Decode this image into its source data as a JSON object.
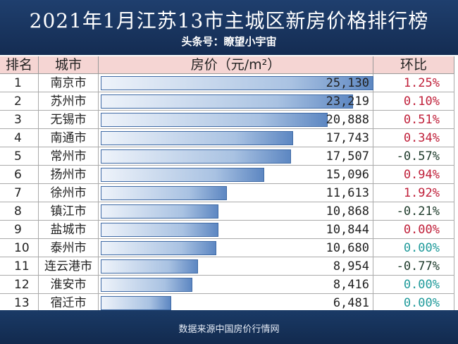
{
  "header": {
    "title": "2021年1月江苏13市主城区新房价格排行榜",
    "subtitle": "头条号：瞭望小宇宙"
  },
  "table": {
    "columns": [
      "排名",
      "城市",
      "房价（元/m²）",
      "环比"
    ],
    "rows": [
      {
        "rank": 1,
        "city": "南京市",
        "price": 25130,
        "price_label": "25,130",
        "change": "1.25%",
        "color": "#c0203a"
      },
      {
        "rank": 2,
        "city": "苏州市",
        "price": 23219,
        "price_label": "23,219",
        "change": "0.10%",
        "color": "#c0203a"
      },
      {
        "rank": 3,
        "city": "无锡市",
        "price": 20888,
        "price_label": "20,888",
        "change": "0.51%",
        "color": "#c0203a"
      },
      {
        "rank": 4,
        "city": "南通市",
        "price": 17743,
        "price_label": "17,743",
        "change": "0.34%",
        "color": "#c0203a"
      },
      {
        "rank": 5,
        "city": "常州市",
        "price": 17507,
        "price_label": "17,507",
        "change": "-0.57%",
        "color": "#1d3a2a"
      },
      {
        "rank": 6,
        "city": "扬州市",
        "price": 15096,
        "price_label": "15,096",
        "change": "0.94%",
        "color": "#c0203a"
      },
      {
        "rank": 7,
        "city": "徐州市",
        "price": 11613,
        "price_label": "11,613",
        "change": "1.92%",
        "color": "#c0203a"
      },
      {
        "rank": 8,
        "city": "镇江市",
        "price": 10868,
        "price_label": "10,868",
        "change": "-0.21%",
        "color": "#1d3a2a"
      },
      {
        "rank": 9,
        "city": "盐城市",
        "price": 10844,
        "price_label": "10,844",
        "change": "0.00%",
        "color": "#c0203a"
      },
      {
        "rank": 10,
        "city": "泰州市",
        "price": 10680,
        "price_label": "10,680",
        "change": "0.00%",
        "color": "#1f9a9a"
      },
      {
        "rank": 11,
        "city": "连云港市",
        "price": 8954,
        "price_label": "8,954",
        "change": "-0.77%",
        "color": "#1d3a2a"
      },
      {
        "rank": 12,
        "city": "淮安市",
        "price": 8416,
        "price_label": "8,416",
        "change": "0.00%",
        "color": "#1f9a9a"
      },
      {
        "rank": 13,
        "city": "宿迁市",
        "price": 6481,
        "price_label": "6,481",
        "change": "0.00%",
        "color": "#1f9a9a"
      }
    ]
  },
  "footer": {
    "source": "数据来源中国房价行情网"
  }
}
